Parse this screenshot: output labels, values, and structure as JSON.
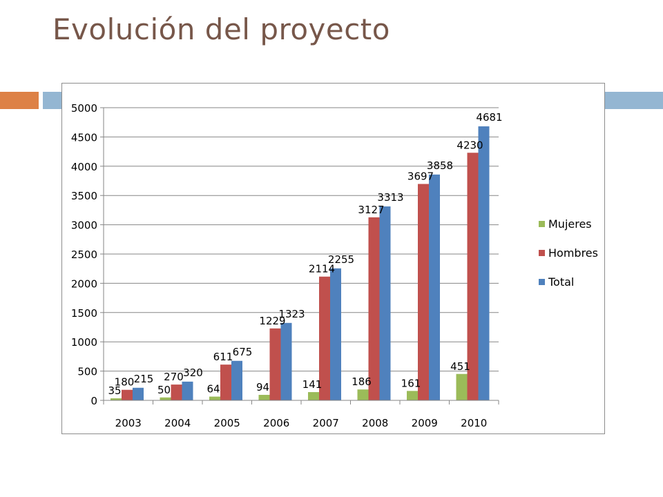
{
  "slide": {
    "title": "Evolución del proyecto"
  },
  "colors": {
    "title": "#77574a",
    "accent_orange": "#dd8146",
    "accent_blue": "#94b6d2",
    "mujeres": "#9bbb59",
    "hombres": "#c0504d",
    "total": "#4f81bd"
  },
  "chart_data": {
    "type": "bar",
    "title": "",
    "xlabel": "",
    "ylabel": "",
    "ylim": [
      0,
      5000
    ],
    "yticks": [
      0,
      500,
      1000,
      1500,
      2000,
      2500,
      3000,
      3500,
      4000,
      4500,
      5000
    ],
    "grid": true,
    "legend_position": "right",
    "categories": [
      "2003",
      "2004",
      "2005",
      "2006",
      "2007",
      "2008",
      "2009",
      "2010"
    ],
    "series": [
      {
        "name": "Mujeres",
        "color": "#9bbb59",
        "values": [
          35,
          50,
          64,
          94,
          141,
          186,
          161,
          451
        ]
      },
      {
        "name": "Hombres",
        "color": "#c0504d",
        "values": [
          180,
          270,
          611,
          1229,
          2114,
          3127,
          3697,
          4230
        ]
      },
      {
        "name": "Total",
        "color": "#4f81bd",
        "values": [
          215,
          320,
          675,
          1323,
          2255,
          3313,
          3858,
          4681
        ]
      }
    ]
  }
}
